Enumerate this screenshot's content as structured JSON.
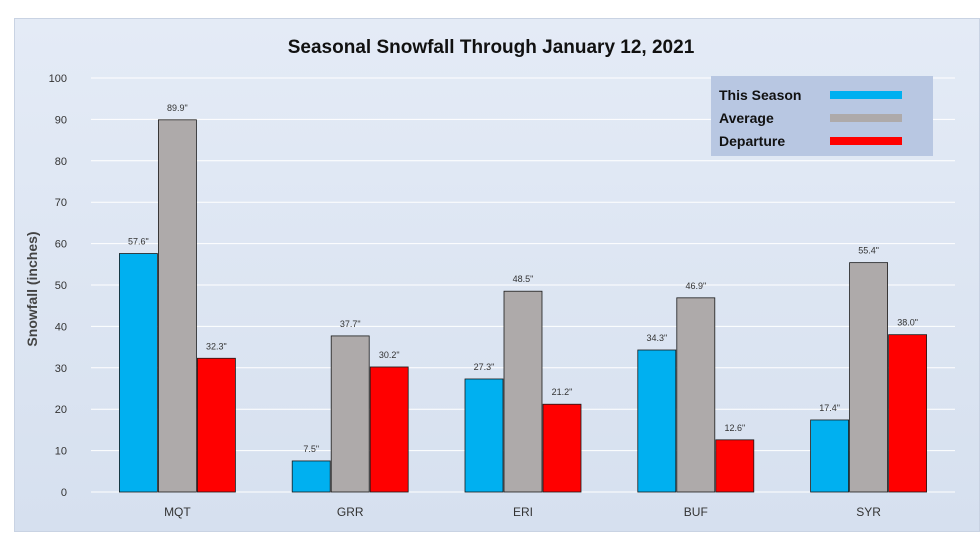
{
  "chart_data": {
    "type": "bar",
    "title": "Seasonal Snowfall Through January 12, 2021",
    "xlabel": "",
    "ylabel": "Snowfall (inches)",
    "ylim": [
      0,
      100
    ],
    "yticks": [
      0,
      10,
      20,
      30,
      40,
      50,
      60,
      70,
      80,
      90,
      100
    ],
    "grid": true,
    "legend_position": "top-right",
    "categories": [
      "MQT",
      "GRR",
      "ERI",
      "BUF",
      "SYR"
    ],
    "series": [
      {
        "name": "This Season",
        "color": "#00b0f0",
        "values": [
          57.6,
          7.5,
          27.3,
          34.3,
          17.4
        ],
        "labels": [
          "57.6\"",
          "7.5\"",
          "27.3\"",
          "34.3\"",
          "17.4\""
        ]
      },
      {
        "name": "Average",
        "color": "#aeaaaa",
        "values": [
          89.9,
          37.7,
          48.5,
          46.9,
          55.4
        ],
        "labels": [
          "89.9\"",
          "37.7\"",
          "48.5\"",
          "46.9\"",
          "55.4\""
        ]
      },
      {
        "name": "Departure",
        "color": "#ff0000",
        "values": [
          32.3,
          30.2,
          21.2,
          12.6,
          38.0
        ],
        "labels": [
          "32.3\"",
          "30.2\"",
          "21.2\"",
          "12.6\"",
          "38.0\""
        ]
      }
    ]
  }
}
